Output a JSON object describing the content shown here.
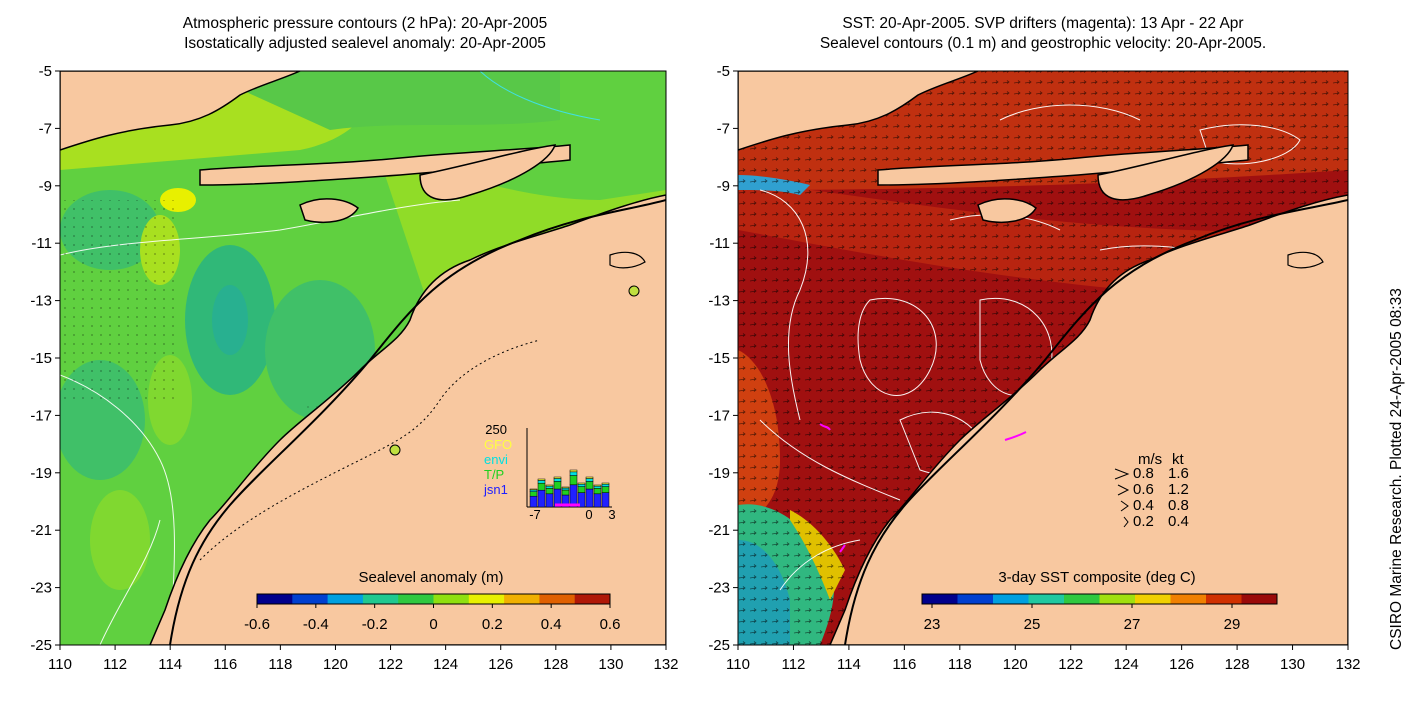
{
  "left_panel": {
    "title_line1": "Atmospheric pressure contours (2 hPa): 20-Apr-2005",
    "title_line2": "Isostatically adjusted sealevel anomaly: 20-Apr-2005",
    "colorbar_label": "Sealevel anomaly (m)",
    "colorbar_ticks": [
      "-0.6",
      "-0.4",
      "-0.2",
      "0",
      "0.2",
      "0.4",
      "0.6"
    ],
    "colorbar_colors": [
      "#00008c",
      "#0040d0",
      "#00a0e0",
      "#20c890",
      "#30c840",
      "#90e010",
      "#e8f000",
      "#f0b000",
      "#e06000",
      "#b01808"
    ],
    "inset": {
      "y_max_label": "250",
      "x_labels": [
        "-7",
        "0",
        "3"
      ],
      "legend": [
        {
          "label": "GFO",
          "color": "#ffff40"
        },
        {
          "label": "envi",
          "color": "#00e0e0"
        },
        {
          "label": "T/P",
          "color": "#20d020"
        },
        {
          "label": "jsn1",
          "color": "#2020ff"
        }
      ]
    }
  },
  "right_panel": {
    "title_line1": "SST: 20-Apr-2005. SVP drifters (magenta): 13 Apr - 22 Apr",
    "title_line2": "Sealevel contours (0.1 m) and geostrophic velocity: 20-Apr-2005.",
    "colorbar_label": "3-day SST composite (deg C)",
    "colorbar_ticks": [
      "23",
      "25",
      "27",
      "29"
    ],
    "colorbar_colors": [
      "#00008c",
      "#0040d0",
      "#00a0e0",
      "#20c8a0",
      "#30c840",
      "#a0e010",
      "#f0d000",
      "#f08000",
      "#d03000",
      "#9a0a0a"
    ],
    "velocity_key": {
      "header_ms": "m/s",
      "header_kt": "kt",
      "rows": [
        {
          "ms": "0.8",
          "kt": "1.6"
        },
        {
          "ms": "0.6",
          "kt": "1.2"
        },
        {
          "ms": "0.4",
          "kt": "0.8"
        },
        {
          "ms": "0.2",
          "kt": "0.4"
        }
      ]
    }
  },
  "axes": {
    "lat_labels": [
      "-5",
      "-7",
      "-9",
      "-11",
      "-13",
      "-15",
      "-17",
      "-19",
      "-21",
      "-23",
      "-25"
    ],
    "lon_labels": [
      "110",
      "112",
      "114",
      "116",
      "118",
      "120",
      "122",
      "124",
      "126",
      "128",
      "130",
      "132"
    ]
  },
  "side_note": "CSIRO Marine Research. Plotted 24-Apr-2005 08:33",
  "colors": {
    "land": "#f8c8a0",
    "sla_green": "#60d040",
    "sla_light": "#a8e020",
    "sla_teal": "#30c070",
    "sst_red": "#a01010",
    "drifter": "#ff00ff"
  }
}
